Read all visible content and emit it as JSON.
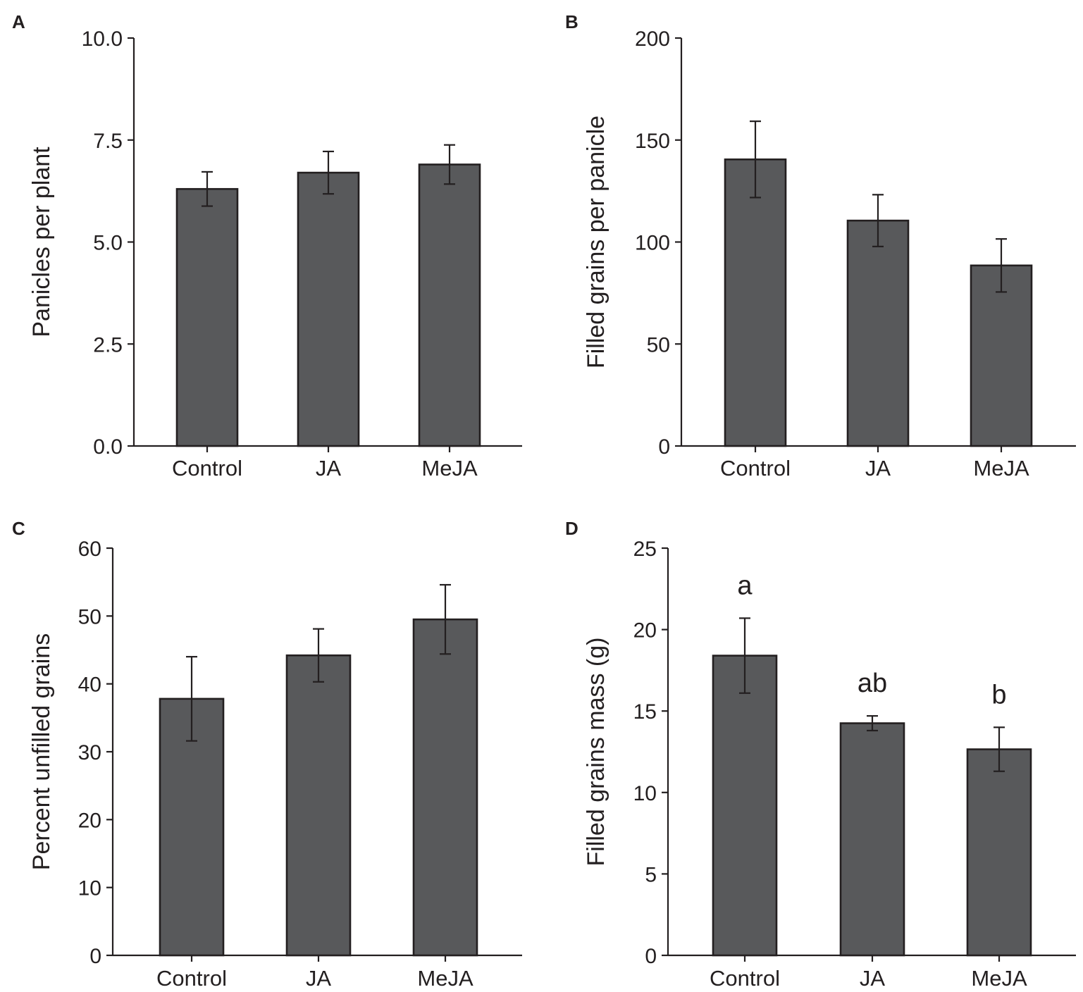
{
  "colors": {
    "bar_fill": "#58595b",
    "bar_stroke": "#231f20",
    "axis": "#231f20"
  },
  "chart_data": [
    {
      "panel": "A",
      "type": "bar",
      "categories": [
        "Control",
        "JA",
        "MeJA"
      ],
      "values": [
        6.3,
        6.7,
        6.9
      ],
      "errors": [
        0.42,
        0.52,
        0.48
      ],
      "title": "",
      "xlabel": "",
      "ylabel": "Panicles per plant",
      "ylim": [
        0,
        10
      ],
      "yticks": [
        0,
        2.5,
        5,
        7.5,
        10
      ],
      "ytick_labels": [
        "0.0",
        "2.5",
        "5.0",
        "7.5",
        "10.0"
      ],
      "significance": []
    },
    {
      "panel": "B",
      "type": "bar",
      "categories": [
        "Control",
        "JA",
        "MeJA"
      ],
      "values": [
        140.5,
        110.5,
        88.5
      ],
      "errors": [
        18.7,
        12.7,
        13.0
      ],
      "title": "",
      "xlabel": "",
      "ylabel": "Filled grains per panicle",
      "ylim": [
        0,
        200
      ],
      "yticks": [
        0,
        50,
        100,
        150,
        200
      ],
      "ytick_labels": [
        "0",
        "50",
        "100",
        "150",
        "200"
      ],
      "significance": []
    },
    {
      "panel": "C",
      "type": "bar",
      "categories": [
        "Control",
        "JA",
        "MeJA"
      ],
      "values": [
        37.8,
        44.2,
        49.5
      ],
      "errors": [
        6.2,
        3.9,
        5.1
      ],
      "title": "",
      "xlabel": "",
      "ylabel": "Percent unfilled grains",
      "ylim": [
        0,
        60
      ],
      "yticks": [
        0,
        10,
        20,
        30,
        40,
        50,
        60
      ],
      "ytick_labels": [
        "0",
        "10",
        "20",
        "30",
        "40",
        "50",
        "60"
      ],
      "significance": []
    },
    {
      "panel": "D",
      "type": "bar",
      "categories": [
        "Control",
        "JA",
        "MeJA"
      ],
      "values": [
        18.4,
        14.25,
        12.65
      ],
      "errors": [
        2.3,
        0.45,
        1.35
      ],
      "title": "",
      "xlabel": "",
      "ylabel": "Filled grains mass (g)",
      "ylim": [
        0,
        25
      ],
      "yticks": [
        0,
        5,
        10,
        15,
        20,
        25
      ],
      "ytick_labels": [
        "0",
        "5",
        "10",
        "15",
        "20",
        "25"
      ],
      "significance": [
        "a",
        "ab",
        "b"
      ]
    }
  ]
}
